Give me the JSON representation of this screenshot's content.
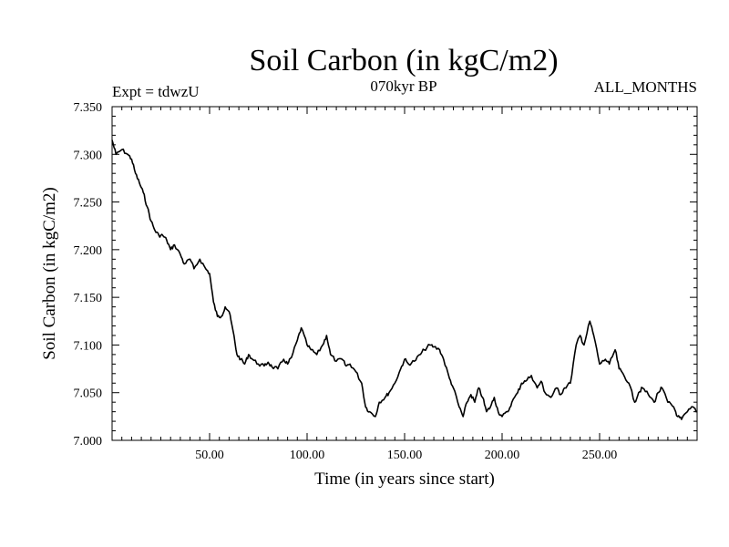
{
  "chart_data": {
    "type": "line",
    "title": "Soil Carbon (in kgC/m2)",
    "subtitle_left": "Expt = tdwzU",
    "subtitle_center": "070kyr BP",
    "subtitle_right": "ALL_MONTHS",
    "xlabel": "Time (in years since start)",
    "ylabel": "Soil Carbon (in kgC/m2)",
    "xlim": [
      0,
      300
    ],
    "ylim": [
      7.0,
      7.35
    ],
    "xticks": [
      50,
      100,
      150,
      200,
      250
    ],
    "xtick_labels": [
      "50.00",
      "100.00",
      "150.00",
      "200.00",
      "250.00"
    ],
    "yticks": [
      7.0,
      7.05,
      7.1,
      7.15,
      7.2,
      7.25,
      7.3,
      7.35
    ],
    "ytick_labels": [
      "7.000",
      "7.050",
      "7.100",
      "7.150",
      "7.200",
      "7.250",
      "7.300",
      "7.350"
    ],
    "grid": false,
    "line_color": "#000000",
    "series": [
      {
        "x": [
          0,
          2,
          5,
          8,
          10,
          12,
          14,
          16,
          18,
          20,
          22,
          24,
          26,
          28,
          30,
          32,
          35,
          37,
          40,
          42,
          45,
          48,
          50,
          52,
          54,
          56,
          58,
          60,
          62,
          64,
          66,
          68,
          70,
          72,
          75,
          78,
          80,
          82,
          85,
          88,
          90,
          92,
          95,
          97,
          100,
          102,
          105,
          108,
          110,
          112,
          115,
          118,
          120,
          122,
          125,
          128,
          130,
          132,
          135,
          137,
          140,
          142,
          145,
          148,
          150,
          152,
          155,
          158,
          160,
          163,
          165,
          168,
          170,
          173,
          175,
          178,
          180,
          182,
          184,
          186,
          188,
          190,
          192,
          194,
          196,
          198,
          200,
          203,
          205,
          208,
          210,
          212,
          215,
          218,
          220,
          222,
          225,
          228,
          230,
          232,
          235,
          238,
          240,
          242,
          245,
          247,
          250,
          253,
          255,
          258,
          260,
          262,
          265,
          268,
          270,
          272,
          275,
          278,
          280,
          282,
          285,
          288,
          290,
          292,
          295,
          298,
          300
        ],
        "y": [
          7.315,
          7.3,
          7.305,
          7.3,
          7.295,
          7.28,
          7.27,
          7.26,
          7.245,
          7.23,
          7.22,
          7.215,
          7.215,
          7.21,
          7.2,
          7.205,
          7.195,
          7.185,
          7.19,
          7.18,
          7.19,
          7.18,
          7.175,
          7.145,
          7.13,
          7.13,
          7.14,
          7.135,
          7.115,
          7.09,
          7.085,
          7.08,
          7.09,
          7.085,
          7.08,
          7.078,
          7.082,
          7.077,
          7.075,
          7.085,
          7.08,
          7.087,
          7.105,
          7.118,
          7.1,
          7.095,
          7.09,
          7.1,
          7.11,
          7.09,
          7.083,
          7.085,
          7.078,
          7.08,
          7.072,
          7.06,
          7.035,
          7.03,
          7.025,
          7.04,
          7.045,
          7.05,
          7.06,
          7.075,
          7.085,
          7.08,
          7.083,
          7.09,
          7.095,
          7.1,
          7.098,
          7.095,
          7.085,
          7.065,
          7.055,
          7.035,
          7.025,
          7.04,
          7.048,
          7.04,
          7.055,
          7.045,
          7.03,
          7.035,
          7.045,
          7.03,
          7.025,
          7.03,
          7.04,
          7.05,
          7.06,
          7.062,
          7.068,
          7.055,
          7.062,
          7.05,
          7.045,
          7.055,
          7.048,
          7.055,
          7.06,
          7.1,
          7.11,
          7.1,
          7.125,
          7.11,
          7.08,
          7.085,
          7.08,
          7.095,
          7.075,
          7.07,
          7.06,
          7.04,
          7.05,
          7.055,
          7.048,
          7.04,
          7.05,
          7.055,
          7.04,
          7.035,
          7.025,
          7.022,
          7.03,
          7.035,
          7.03
        ]
      }
    ]
  }
}
